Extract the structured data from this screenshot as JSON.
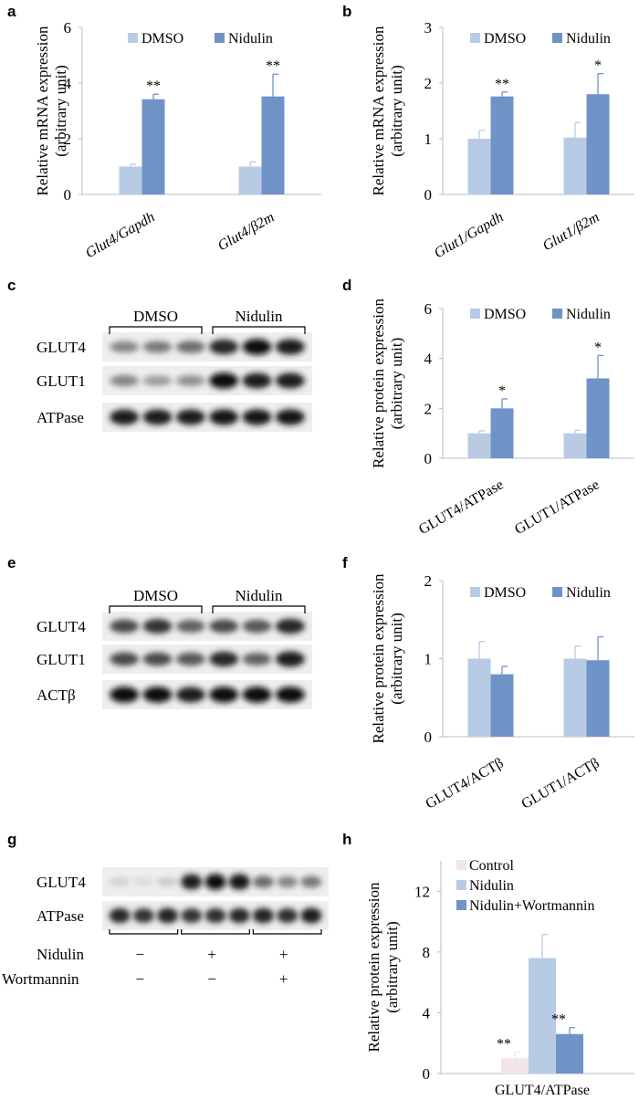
{
  "panels": {
    "a": "a",
    "b": "b",
    "c": "c",
    "d": "d",
    "e": "e",
    "f": "f",
    "g": "g",
    "h": "h"
  },
  "colors": {
    "dmso": "#b8cbe4",
    "nidulin": "#6f93c7",
    "control": "#f2e4e7",
    "nidulin_wort": "#6f93c7",
    "axis": "#bdbdbd"
  },
  "chart_data": [
    {
      "id": "a",
      "type": "bar",
      "ylabel": [
        "Relative mRNA expression",
        "(arbitrary unit)"
      ],
      "ylim": [
        0,
        6
      ],
      "yticks": [
        "0",
        "2",
        "4",
        "6"
      ],
      "categories": [
        "Glut4/Gapdh",
        "Glut4/β2m"
      ],
      "categories_italic": true,
      "legend": "top-center",
      "series": [
        {
          "name": "DMSO",
          "values": [
            1.0,
            1.0
          ],
          "errors": [
            0.08,
            0.17
          ],
          "stars": [
            "",
            ""
          ]
        },
        {
          "name": "Nidulin",
          "values": [
            3.42,
            3.52
          ],
          "errors": [
            0.18,
            0.8
          ],
          "stars": [
            "**",
            "**"
          ]
        }
      ]
    },
    {
      "id": "b",
      "type": "bar",
      "ylabel": [
        "Relative mRNA expression",
        "(arbitrary unit)"
      ],
      "ylim": [
        0,
        3
      ],
      "yticks": [
        "0",
        "1",
        "2",
        "3"
      ],
      "categories": [
        "Glut1/Gapdh",
        "Glut1/β2m"
      ],
      "categories_italic": true,
      "legend": "top-center",
      "series": [
        {
          "name": "DMSO",
          "values": [
            1.0,
            1.02
          ],
          "errors": [
            0.15,
            0.27
          ],
          "stars": [
            "",
            ""
          ]
        },
        {
          "name": "Nidulin",
          "values": [
            1.76,
            1.8
          ],
          "errors": [
            0.08,
            0.37
          ],
          "stars": [
            "**",
            "*"
          ]
        }
      ]
    },
    {
      "id": "d",
      "type": "bar",
      "ylabel": [
        "Relative protein expression",
        "(arbitrary unit)"
      ],
      "ylim": [
        0,
        6
      ],
      "yticks": [
        "0",
        "2",
        "4",
        "6"
      ],
      "categories": [
        "GLUT4/ATPase",
        "GLUT1/ATPase"
      ],
      "categories_italic": false,
      "legend": "top-center",
      "series": [
        {
          "name": "DMSO",
          "values": [
            1.0,
            1.0
          ],
          "errors": [
            0.1,
            0.12
          ],
          "stars": [
            "",
            ""
          ]
        },
        {
          "name": "Nidulin",
          "values": [
            2.0,
            3.2
          ],
          "errors": [
            0.38,
            0.92
          ],
          "stars": [
            "*",
            "*"
          ]
        }
      ]
    },
    {
      "id": "f",
      "type": "bar",
      "ylabel": [
        "Relative protein expression",
        "(arbitrary unit)"
      ],
      "ylim": [
        0,
        2
      ],
      "yticks": [
        "0",
        "1",
        "2"
      ],
      "categories": [
        "GLUT4/ACTβ",
        "GLUT1/ACTβ"
      ],
      "categories_italic": false,
      "legend": "top-center",
      "series": [
        {
          "name": "DMSO",
          "values": [
            1.0,
            1.0
          ],
          "errors": [
            0.22,
            0.16
          ],
          "stars": [
            "",
            ""
          ]
        },
        {
          "name": "Nidulin",
          "values": [
            0.8,
            0.98
          ],
          "errors": [
            0.1,
            0.3
          ],
          "stars": [
            "",
            ""
          ]
        }
      ]
    },
    {
      "id": "h",
      "type": "bar",
      "ylabel": [
        "Relative protein expression",
        "(arbitrary unit)"
      ],
      "ylim": [
        0,
        14
      ],
      "yticks": [
        "0",
        "4",
        "8",
        "12"
      ],
      "categories": [
        "GLUT4/ATPase"
      ],
      "categories_italic": false,
      "legend": "top-left",
      "series": [
        {
          "name": "Control",
          "values": [
            1.0
          ],
          "errors": [
            0.42
          ],
          "stars": [
            "**"
          ]
        },
        {
          "name": "Nidulin",
          "values": [
            7.6
          ],
          "errors": [
            1.55
          ],
          "stars": [
            ""
          ]
        },
        {
          "name": "Nidulin+Wortmannin",
          "values": [
            2.6
          ],
          "errors": [
            0.42
          ],
          "stars": [
            "**"
          ]
        }
      ]
    }
  ],
  "blots": {
    "c": {
      "groups": [
        "DMSO",
        "Nidulin"
      ],
      "rows": [
        {
          "label": "GLUT4",
          "intensities": [
            0.45,
            0.5,
            0.55,
            0.85,
            0.95,
            0.9
          ]
        },
        {
          "label": "GLUT1",
          "intensities": [
            0.45,
            0.35,
            0.4,
            0.95,
            0.9,
            0.9
          ]
        },
        {
          "label": "ATPase",
          "intensities": [
            0.9,
            0.9,
            0.9,
            0.92,
            0.92,
            0.92
          ]
        }
      ]
    },
    "e": {
      "groups": [
        "DMSO",
        "Nidulin"
      ],
      "rows": [
        {
          "label": "GLUT4",
          "intensities": [
            0.7,
            0.8,
            0.6,
            0.7,
            0.65,
            0.85
          ]
        },
        {
          "label": "GLUT1",
          "intensities": [
            0.7,
            0.7,
            0.65,
            0.85,
            0.6,
            0.9
          ]
        },
        {
          "label": "ACTβ",
          "intensities": [
            0.95,
            0.95,
            0.9,
            0.95,
            0.95,
            0.95
          ]
        }
      ]
    },
    "g": {
      "rows": [
        {
          "label": "GLUT4",
          "intensities": [
            0.12,
            0.08,
            0.15,
            0.9,
            0.95,
            0.92,
            0.55,
            0.45,
            0.5
          ]
        },
        {
          "label": "ATPase",
          "intensities": [
            0.85,
            0.8,
            0.88,
            0.8,
            0.82,
            0.85,
            0.88,
            0.82,
            0.9
          ]
        }
      ],
      "treatments": [
        {
          "label": "Nidulin",
          "values": [
            "−",
            "+",
            "+"
          ]
        },
        {
          "label": "Wortmannin",
          "values": [
            "−",
            "−",
            "+"
          ]
        }
      ]
    }
  }
}
